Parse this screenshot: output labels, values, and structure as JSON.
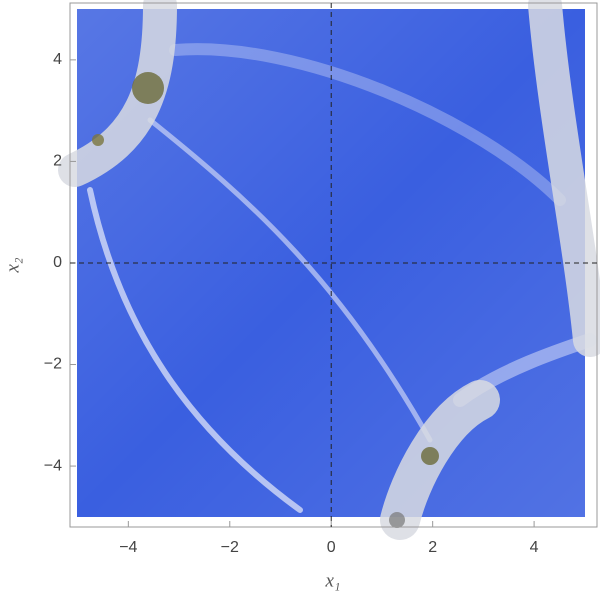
{
  "chart_data": {
    "type": "density",
    "xlabel": "x₁",
    "ylabel": "x₂",
    "xlim": [
      -5.15,
      5.24
    ],
    "ylim": [
      -5.2,
      5.12
    ],
    "xticks": [
      {
        "value": -4,
        "label": "−4"
      },
      {
        "value": -2,
        "label": "−2"
      },
      0,
      2,
      4
    ],
    "yticks": [
      {
        "value": -4,
        "label": "−4"
      },
      {
        "value": -2,
        "label": "−2"
      },
      0,
      2,
      4
    ],
    "color": "#3a5fe0",
    "zero_lines": true
  }
}
